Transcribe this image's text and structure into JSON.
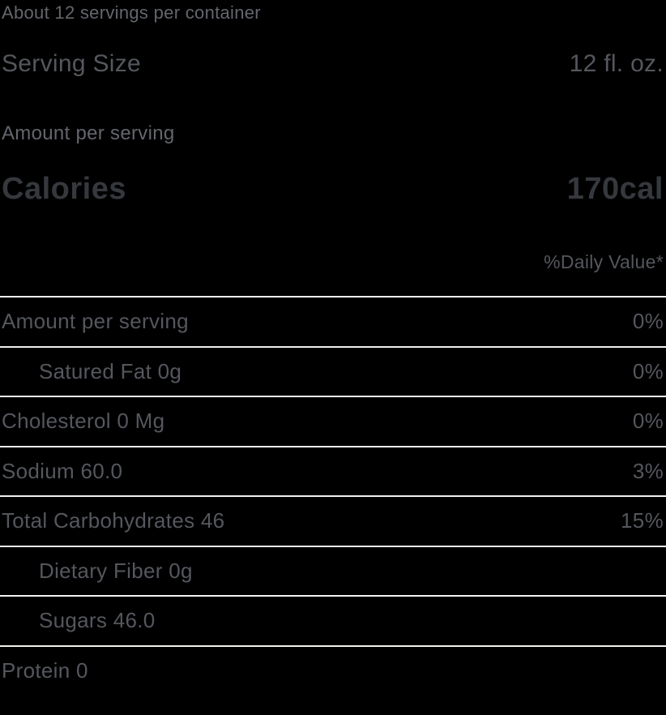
{
  "colors": {
    "background": "#000000",
    "text": "#54575d",
    "text_soft": "#63666c",
    "text_dark": "#35383d",
    "divider": "#f2f0ed"
  },
  "label": {
    "servings_text": "About 12 servings per container",
    "serving_size_label": "Serving Size",
    "serving_size_value": "12 fl. oz.",
    "amount_per_serving_heading": "Amount per serving",
    "calories_label": "Calories",
    "calories_value": "170cal",
    "daily_value_header": "%Daily Value*",
    "rows": [
      {
        "name": "Amount per serving",
        "dv": "0%",
        "indent": false
      },
      {
        "name": "Satured Fat 0g",
        "dv": "0%",
        "indent": true
      },
      {
        "name": "Cholesterol 0 Mg",
        "dv": "0%",
        "indent": false
      },
      {
        "name": "Sodium 60.0",
        "dv": "3%",
        "indent": false
      },
      {
        "name": "Total Carbohydrates 46",
        "dv": "15%",
        "indent": false
      },
      {
        "name": "Dietary Fiber 0g",
        "dv": "",
        "indent": true
      },
      {
        "name": "Sugars 46.0",
        "dv": "",
        "indent": true
      },
      {
        "name": "Protein 0",
        "dv": "",
        "indent": false
      }
    ]
  }
}
